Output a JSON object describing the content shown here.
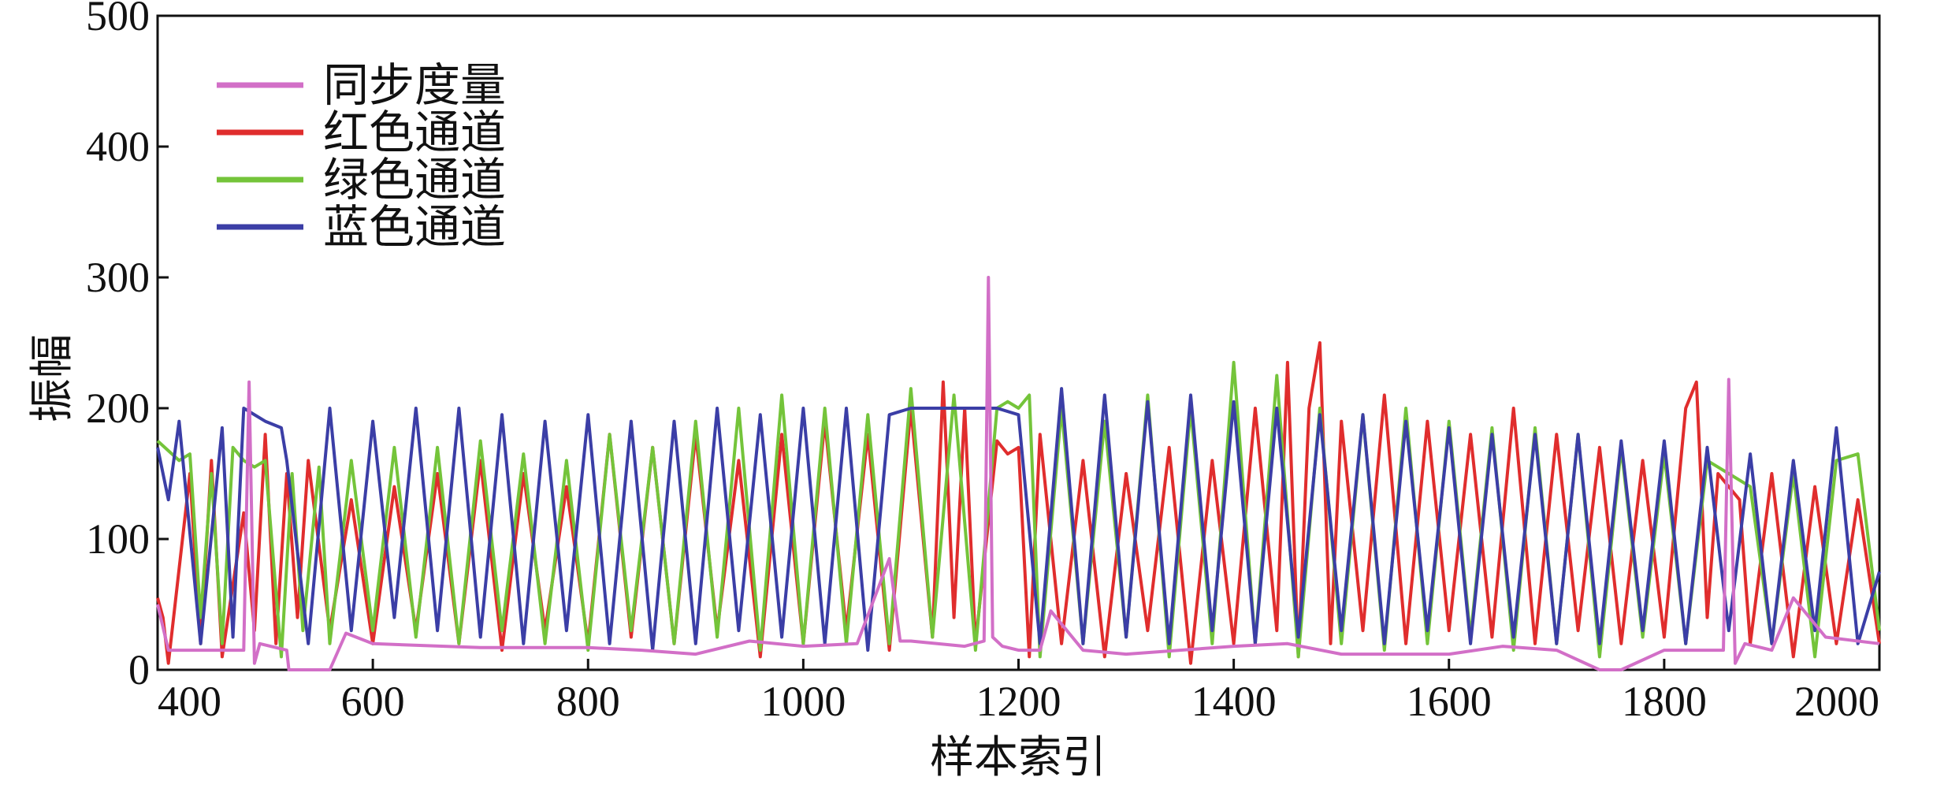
{
  "chart_data": {
    "type": "line",
    "title": "",
    "xlabel": "样本索引",
    "ylabel": "振幅",
    "xlim": [
      400,
      2000
    ],
    "ylim": [
      0,
      500
    ],
    "xticks": [
      400,
      600,
      800,
      1000,
      1200,
      1400,
      1600,
      1800,
      2000
    ],
    "yticks": [
      0,
      100,
      200,
      300,
      400,
      500
    ],
    "grid": false,
    "legend_position": "top-left",
    "series": [
      {
        "name": "同步度量",
        "color": "#d26fc7",
        "x": [
          400,
          410,
          420,
          480,
          485,
          490,
          495,
          520,
          522,
          540,
          560,
          575,
          600,
          700,
          800,
          850,
          900,
          950,
          1000,
          1050,
          1080,
          1090,
          1100,
          1150,
          1168,
          1172,
          1176,
          1185,
          1200,
          1220,
          1230,
          1260,
          1300,
          1400,
          1450,
          1500,
          1600,
          1650,
          1700,
          1740,
          1760,
          1800,
          1855,
          1860,
          1866,
          1875,
          1900,
          1920,
          1950,
          2000
        ],
        "values": [
          50,
          15,
          15,
          15,
          220,
          5,
          20,
          15,
          0,
          0,
          0,
          28,
          20,
          17,
          17,
          15,
          12,
          22,
          18,
          20,
          85,
          22,
          22,
          18,
          22,
          300,
          25,
          18,
          15,
          15,
          45,
          15,
          12,
          18,
          20,
          12,
          12,
          18,
          15,
          0,
          0,
          15,
          15,
          222,
          5,
          20,
          15,
          55,
          25,
          20
        ]
      },
      {
        "name": "红色通道",
        "color": "#e02d2d",
        "x": [
          400,
          405,
          410,
          430,
          440,
          450,
          460,
          480,
          490,
          500,
          510,
          520,
          530,
          540,
          560,
          580,
          600,
          620,
          640,
          660,
          680,
          700,
          720,
          740,
          760,
          780,
          800,
          820,
          840,
          860,
          880,
          900,
          920,
          940,
          960,
          980,
          1000,
          1020,
          1040,
          1060,
          1080,
          1100,
          1120,
          1130,
          1140,
          1150,
          1160,
          1180,
          1190,
          1200,
          1210,
          1220,
          1240,
          1260,
          1280,
          1300,
          1320,
          1340,
          1360,
          1380,
          1400,
          1420,
          1440,
          1450,
          1460,
          1470,
          1480,
          1490,
          1500,
          1520,
          1540,
          1560,
          1580,
          1600,
          1620,
          1640,
          1660,
          1680,
          1700,
          1720,
          1740,
          1760,
          1780,
          1800,
          1820,
          1830,
          1840,
          1850,
          1860,
          1870,
          1880,
          1900,
          1920,
          1940,
          1960,
          1980,
          2000
        ],
        "values": [
          55,
          40,
          5,
          150,
          20,
          160,
          10,
          120,
          30,
          180,
          20,
          150,
          40,
          160,
          30,
          130,
          20,
          140,
          30,
          150,
          20,
          160,
          15,
          150,
          30,
          140,
          20,
          180,
          25,
          170,
          20,
          180,
          30,
          160,
          10,
          180,
          20,
          190,
          30,
          180,
          15,
          200,
          25,
          220,
          40,
          200,
          20,
          175,
          165,
          170,
          10,
          180,
          20,
          160,
          10,
          150,
          30,
          170,
          5,
          160,
          20,
          200,
          30,
          235,
          10,
          200,
          250,
          20,
          190,
          30,
          210,
          20,
          190,
          30,
          180,
          25,
          200,
          20,
          180,
          30,
          170,
          20,
          160,
          25,
          200,
          220,
          40,
          150,
          140,
          130,
          20,
          150,
          10,
          140,
          20,
          130,
          20
        ]
      },
      {
        "name": "绿色通道",
        "color": "#74c43a",
        "x": [
          400,
          420,
          430,
          440,
          450,
          460,
          470,
          480,
          490,
          500,
          515,
          525,
          535,
          550,
          560,
          580,
          600,
          620,
          640,
          660,
          680,
          700,
          720,
          740,
          760,
          780,
          800,
          820,
          840,
          860,
          880,
          900,
          920,
          940,
          960,
          980,
          1000,
          1020,
          1040,
          1060,
          1080,
          1100,
          1120,
          1140,
          1160,
          1180,
          1190,
          1200,
          1210,
          1220,
          1240,
          1260,
          1280,
          1300,
          1320,
          1340,
          1360,
          1380,
          1400,
          1420,
          1440,
          1460,
          1480,
          1500,
          1520,
          1540,
          1560,
          1580,
          1600,
          1620,
          1640,
          1660,
          1680,
          1700,
          1720,
          1740,
          1760,
          1780,
          1800,
          1820,
          1840,
          1860,
          1880,
          1900,
          1920,
          1940,
          1960,
          1980,
          2000
        ],
        "values": [
          175,
          160,
          165,
          40,
          150,
          20,
          170,
          160,
          155,
          160,
          10,
          150,
          30,
          155,
          20,
          160,
          30,
          170,
          25,
          170,
          20,
          175,
          30,
          165,
          20,
          160,
          15,
          180,
          30,
          170,
          20,
          190,
          25,
          200,
          15,
          210,
          20,
          200,
          20,
          195,
          20,
          215,
          25,
          210,
          15,
          200,
          205,
          200,
          210,
          10,
          200,
          20,
          190,
          25,
          210,
          10,
          200,
          20,
          235,
          20,
          225,
          10,
          200,
          20,
          195,
          15,
          200,
          20,
          190,
          25,
          185,
          15,
          185,
          20,
          180,
          10,
          170,
          25,
          165,
          20,
          160,
          150,
          140,
          20,
          150,
          10,
          160,
          165,
          30
        ]
      },
      {
        "name": "蓝色通道",
        "color": "#3b3ea6",
        "x": [
          400,
          410,
          420,
          440,
          460,
          470,
          480,
          500,
          515,
          520,
          540,
          560,
          580,
          600,
          620,
          640,
          660,
          680,
          700,
          720,
          740,
          760,
          780,
          800,
          820,
          840,
          860,
          880,
          900,
          920,
          940,
          960,
          980,
          1000,
          1020,
          1040,
          1060,
          1080,
          1100,
          1140,
          1160,
          1180,
          1200,
          1220,
          1240,
          1260,
          1280,
          1300,
          1320,
          1340,
          1360,
          1380,
          1400,
          1420,
          1440,
          1460,
          1480,
          1500,
          1520,
          1540,
          1560,
          1580,
          1600,
          1620,
          1640,
          1660,
          1680,
          1700,
          1720,
          1740,
          1760,
          1780,
          1800,
          1820,
          1840,
          1860,
          1880,
          1900,
          1920,
          1940,
          1960,
          1980,
          2000
        ],
        "values": [
          170,
          130,
          190,
          20,
          185,
          25,
          200,
          190,
          185,
          160,
          20,
          200,
          30,
          190,
          40,
          200,
          30,
          200,
          25,
          195,
          20,
          190,
          30,
          195,
          20,
          190,
          15,
          190,
          20,
          200,
          30,
          195,
          25,
          200,
          20,
          200,
          15,
          195,
          200,
          200,
          200,
          200,
          195,
          20,
          215,
          20,
          210,
          25,
          205,
          20,
          210,
          30,
          205,
          20,
          200,
          25,
          195,
          30,
          195,
          20,
          190,
          30,
          185,
          20,
          180,
          25,
          180,
          20,
          180,
          20,
          175,
          30,
          175,
          20,
          170,
          30,
          165,
          20,
          160,
          30,
          185,
          20,
          75
        ]
      }
    ]
  }
}
